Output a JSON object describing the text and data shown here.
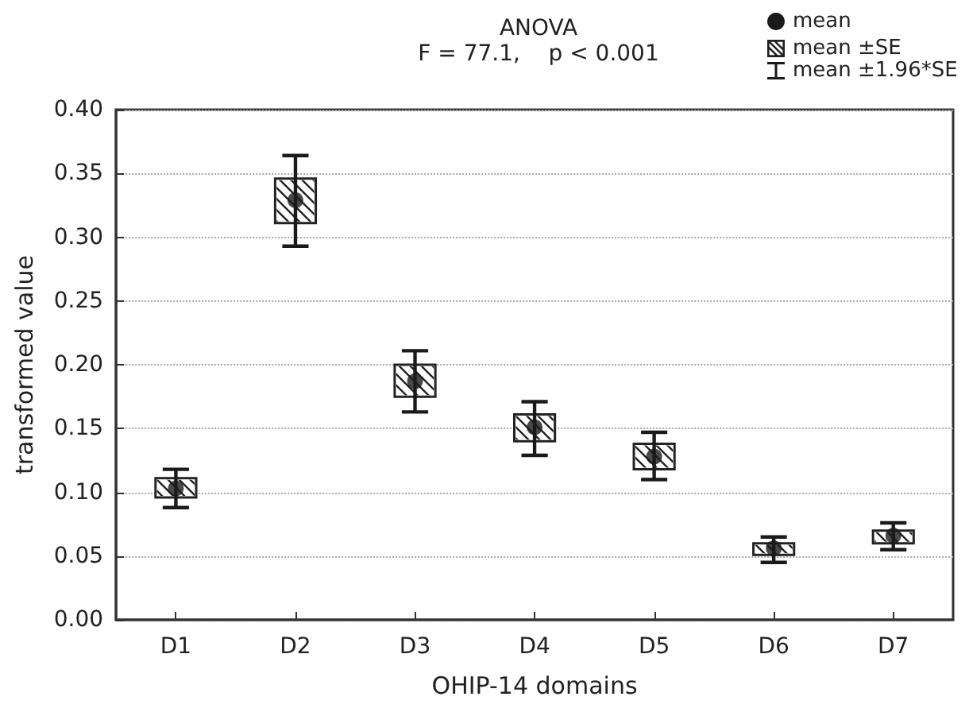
{
  "chart_data": {
    "type": "scatter",
    "title": "ANOVA",
    "subtitle": "F = 77.1,    p < 0.001",
    "xlabel": "OHIP-14 domains",
    "ylabel": "transformed value",
    "categories": [
      "D1",
      "D2",
      "D3",
      "D4",
      "D5",
      "D6",
      "D7"
    ],
    "ylim": [
      0,
      0.4
    ],
    "yticks": [
      {
        "value": 0,
        "label": "0.00"
      },
      {
        "value": 0.05,
        "label": "0.05"
      },
      {
        "value": 0.1,
        "label": "0.10"
      },
      {
        "value": 0.15,
        "label": "0.15"
      },
      {
        "value": 0.2,
        "label": "0.20"
      },
      {
        "value": 0.25,
        "label": "0.25"
      },
      {
        "value": 0.3,
        "label": "0.30"
      },
      {
        "value": 0.35,
        "label": "0.35"
      },
      {
        "value": 0.4,
        "label": "0.40"
      }
    ],
    "grid": "y",
    "legend": "top right",
    "annotations": [
      "mean ±1.96*SE"
    ],
    "series": [
      {
        "name": "mean",
        "marker": "circle",
        "color": "#1a1a1a",
        "values": [
          0.103,
          0.329,
          0.187,
          0.151,
          0.128,
          0.056,
          0.066
        ],
        "errors": [
          [
            0.088,
            0.118
          ],
          [
            0.293,
            0.364
          ],
          [
            0.163,
            0.211
          ],
          [
            0.129,
            0.171
          ],
          [
            0.11,
            0.147
          ],
          [
            0.045,
            0.065
          ],
          [
            0.055,
            0.076
          ]
        ]
      },
      {
        "name": "mean ±SE",
        "type": "bar",
        "color": "#222222",
        "base": [
          0.096,
          0.311,
          0.175,
          0.14,
          0.118,
          0.051,
          0.06
        ],
        "values": [
          0.015,
          0.035,
          0.025,
          0.021,
          0.02,
          0.009,
          0.01
        ]
      }
    ]
  }
}
